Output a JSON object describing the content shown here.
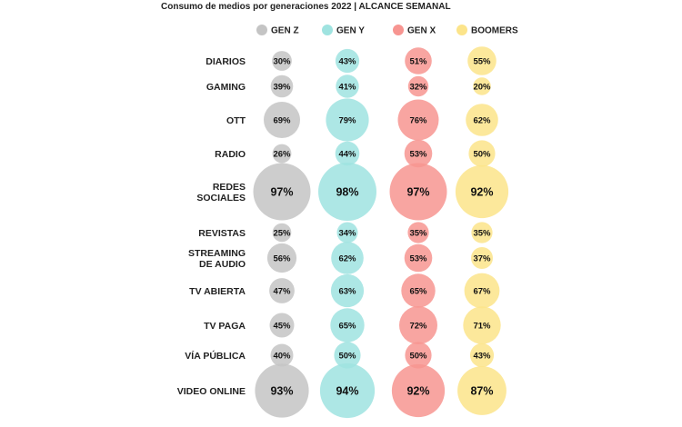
{
  "chart_data": {
    "type": "bubble",
    "title": "Consumo de medios por generaciones 2022 | ALCANCE SEMANAL",
    "series": [
      {
        "name": "GEN Z",
        "color": "#c4c4c4",
        "values": [
          30,
          39,
          69,
          26,
          97,
          25,
          56,
          47,
          45,
          40,
          93
        ]
      },
      {
        "name": "GEN Y",
        "color": "#9fe3e0",
        "values": [
          43,
          41,
          79,
          44,
          98,
          34,
          62,
          63,
          65,
          50,
          94
        ]
      },
      {
        "name": "GEN X",
        "color": "#f79591",
        "values": [
          51,
          32,
          76,
          53,
          97,
          35,
          53,
          65,
          72,
          50,
          92
        ]
      },
      {
        "name": "BOOMERS",
        "color": "#fce48a",
        "values": [
          55,
          20,
          62,
          50,
          92,
          35,
          37,
          67,
          71,
          43,
          87
        ]
      }
    ],
    "categories": [
      [
        "DIARIOS"
      ],
      [
        "GAMING"
      ],
      [
        "OTT"
      ],
      [
        "RADIO"
      ],
      [
        "REDES",
        "SOCIALES"
      ],
      [
        "REVISTAS"
      ],
      [
        "STREAMING",
        "DE AUDIO"
      ],
      [
        "TV ABIERTA"
      ],
      [
        "TV PAGA"
      ],
      [
        "VÍA PÚBLICA"
      ],
      [
        "VIDEO ONLINE"
      ]
    ],
    "value_suffix": "%",
    "legend_position": "top"
  }
}
